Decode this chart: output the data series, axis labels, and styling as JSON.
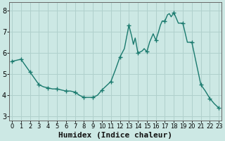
{
  "x": [
    0,
    0.5,
    1,
    1.5,
    2,
    2.5,
    3,
    3.5,
    4,
    4.5,
    5,
    5.5,
    6,
    6.5,
    7,
    7.5,
    8,
    8.5,
    9,
    9.5,
    10,
    10.5,
    11,
    11.5,
    12,
    12.5,
    13,
    13.3,
    13.5,
    13.7,
    14,
    14.3,
    14.5,
    14.7,
    15,
    15.3,
    15.5,
    15.7,
    16,
    16.3,
    16.5,
    16.7,
    17,
    17.3,
    17.5,
    17.7,
    18,
    18.5,
    19,
    19.5,
    20,
    20.5,
    21,
    21.5,
    22,
    22.5,
    23
  ],
  "y": [
    5.6,
    5.65,
    5.7,
    5.4,
    5.1,
    4.8,
    4.5,
    4.4,
    4.35,
    4.3,
    4.3,
    4.25,
    4.2,
    4.2,
    4.15,
    4.0,
    3.9,
    3.9,
    3.9,
    4.0,
    4.25,
    4.45,
    4.65,
    5.2,
    5.8,
    6.2,
    7.3,
    6.8,
    6.4,
    6.7,
    6.0,
    6.05,
    6.1,
    6.2,
    6.05,
    6.5,
    6.7,
    6.9,
    6.6,
    7.0,
    7.3,
    7.5,
    7.5,
    7.8,
    7.85,
    7.7,
    7.9,
    7.4,
    7.4,
    6.5,
    6.5,
    5.5,
    4.5,
    4.2,
    3.85,
    3.6,
    3.4
  ],
  "marker_x": [
    0,
    1,
    2,
    3,
    4,
    5,
    6,
    7,
    8,
    9,
    10,
    11,
    12,
    13,
    14,
    15,
    16,
    17,
    18,
    19,
    20,
    21,
    22,
    23
  ],
  "marker_y": [
    5.6,
    5.7,
    5.1,
    4.5,
    4.35,
    4.3,
    4.2,
    4.15,
    3.9,
    3.9,
    4.25,
    4.65,
    5.8,
    7.3,
    6.0,
    6.05,
    6.6,
    7.5,
    7.9,
    7.4,
    6.5,
    4.5,
    3.85,
    3.4
  ],
  "line_color": "#1a7a6e",
  "marker": "+",
  "marker_size": 4,
  "bg_color": "#cce8e4",
  "grid_color": "#b0d0cc",
  "xlabel": "Humidex (Indice chaleur)",
  "ylim": [
    2.8,
    8.4
  ],
  "xlim": [
    -0.3,
    23.3
  ],
  "yticks": [
    3,
    4,
    5,
    6,
    7,
    8
  ],
  "xticks": [
    0,
    1,
    2,
    3,
    4,
    5,
    6,
    7,
    8,
    9,
    10,
    11,
    12,
    13,
    14,
    15,
    16,
    17,
    18,
    19,
    20,
    21,
    22,
    23
  ],
  "linewidth": 1.0,
  "xlabel_fontsize": 8
}
